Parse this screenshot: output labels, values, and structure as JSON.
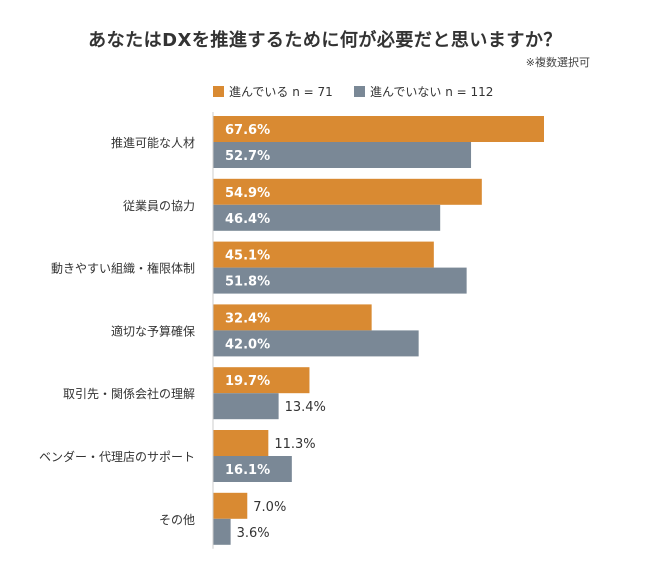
{
  "chart_data": {
    "type": "bar",
    "orientation": "horizontal",
    "title": "あなたはDXを推進するために何が必要だと思いますか？",
    "note": "※複数選択可",
    "categories": [
      "推進可能な人材",
      "従業員の協力",
      "動きやすい組織・権限体制",
      "適切な予算確保",
      "取引先・関係会社の理解",
      "ベンダー・代理店のサポート",
      "その他"
    ],
    "series": [
      {
        "name": "進んでいる n = 71",
        "color": "#d98a32",
        "values": [
          67.6,
          54.9,
          45.1,
          32.4,
          19.7,
          11.3,
          7.0
        ],
        "labels": [
          "67.6%",
          "54.9%",
          "45.1%",
          "32.4%",
          "19.7%",
          "11.3%",
          "7.0%"
        ]
      },
      {
        "name": "進んでいない n = 112",
        "color": "#7a8896",
        "values": [
          52.7,
          46.4,
          51.8,
          42.0,
          13.4,
          16.1,
          3.6
        ],
        "labels": [
          "52.7%",
          "46.4%",
          "51.8%",
          "42.0%",
          "13.4%",
          "16.1%",
          "3.6%"
        ]
      }
    ],
    "xlim": [
      0,
      100
    ],
    "grid": false,
    "legend_position": "top"
  }
}
